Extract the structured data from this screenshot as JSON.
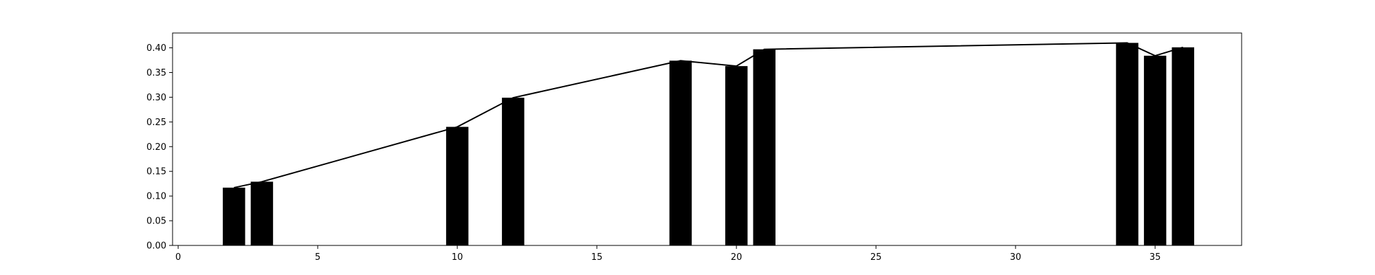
{
  "chart_data": {
    "type": "bar",
    "title": "",
    "xlabel": "",
    "ylabel": "",
    "xlim": [
      -0.2,
      38.1
    ],
    "ylim": [
      0,
      0.43
    ],
    "x_ticks": [
      0,
      5,
      10,
      15,
      20,
      25,
      30,
      35
    ],
    "y_ticks": [
      0.0,
      0.05,
      0.1,
      0.15,
      0.2,
      0.25,
      0.3,
      0.35,
      0.4
    ],
    "y_tick_labels": [
      "0.00",
      "0.05",
      "0.10",
      "0.15",
      "0.20",
      "0.25",
      "0.30",
      "0.35",
      "0.40"
    ],
    "grid": false,
    "bar_color": "#000000",
    "line_color": "#000000",
    "bar_width": 0.8,
    "bars": [
      {
        "x": 2,
        "value": 0.117
      },
      {
        "x": 3,
        "value": 0.129
      },
      {
        "x": 10,
        "value": 0.24
      },
      {
        "x": 12,
        "value": 0.299
      },
      {
        "x": 18,
        "value": 0.374
      },
      {
        "x": 20,
        "value": 0.363
      },
      {
        "x": 21,
        "value": 0.397
      },
      {
        "x": 34,
        "value": 0.41
      },
      {
        "x": 35,
        "value": 0.384
      },
      {
        "x": 36,
        "value": 0.401
      }
    ],
    "line": {
      "x": [
        2,
        3,
        10,
        12,
        18,
        20,
        21,
        34,
        35,
        36
      ],
      "y": [
        0.117,
        0.129,
        0.24,
        0.299,
        0.374,
        0.363,
        0.397,
        0.41,
        0.384,
        0.401
      ]
    }
  }
}
